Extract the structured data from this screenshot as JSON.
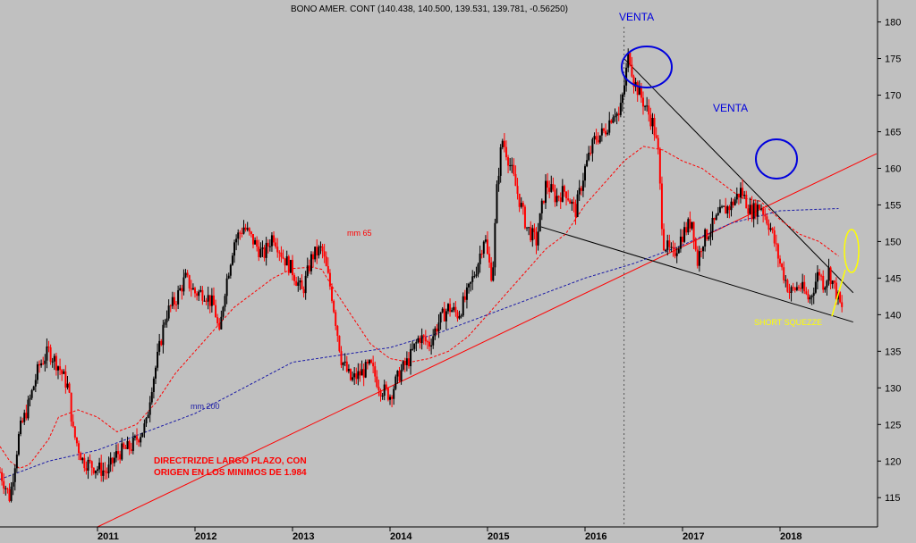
{
  "chart_data": {
    "type": "candlestick",
    "title": "BONO AMER. CONT (140.438, 140.500, 139.531, 139.781, -0.56250)",
    "y_ticks": [
      115,
      120,
      125,
      130,
      135,
      140,
      145,
      150,
      155,
      160,
      165,
      170,
      175,
      180
    ],
    "x_ticks": [
      "2011",
      "2012",
      "2013",
      "2014",
      "2015",
      "2016",
      "2017",
      "2018"
    ],
    "ylim": [
      111,
      183
    ],
    "xlim": [
      2010.0,
      2019.0
    ],
    "grid": false,
    "price_path": [
      [
        2010.0,
        118.5
      ],
      [
        2010.1,
        115
      ],
      [
        2010.2,
        124
      ],
      [
        2010.3,
        128
      ],
      [
        2010.4,
        133
      ],
      [
        2010.5,
        135
      ],
      [
        2010.6,
        133
      ],
      [
        2010.7,
        130
      ],
      [
        2010.75,
        124
      ],
      [
        2010.85,
        120
      ],
      [
        2011.0,
        119
      ],
      [
        2011.1,
        118.5
      ],
      [
        2011.2,
        121
      ],
      [
        2011.35,
        122
      ],
      [
        2011.5,
        125
      ],
      [
        2011.55,
        130
      ],
      [
        2011.6,
        133
      ],
      [
        2011.7,
        140
      ],
      [
        2011.8,
        142
      ],
      [
        2011.9,
        145
      ],
      [
        2012.0,
        143
      ],
      [
        2012.1,
        143
      ],
      [
        2012.2,
        141
      ],
      [
        2012.25,
        137
      ],
      [
        2012.3,
        143
      ],
      [
        2012.4,
        150
      ],
      [
        2012.5,
        152
      ],
      [
        2012.6,
        150
      ],
      [
        2012.7,
        148
      ],
      [
        2012.8,
        151
      ],
      [
        2012.9,
        148
      ],
      [
        2013.0,
        146
      ],
      [
        2013.1,
        143
      ],
      [
        2013.2,
        148
      ],
      [
        2013.3,
        149
      ],
      [
        2013.4,
        143
      ],
      [
        2013.5,
        134
      ],
      [
        2013.6,
        131
      ],
      [
        2013.7,
        132
      ],
      [
        2013.8,
        133
      ],
      [
        2013.9,
        130
      ],
      [
        2014.0,
        129
      ],
      [
        2014.1,
        132
      ],
      [
        2014.2,
        134
      ],
      [
        2014.3,
        137
      ],
      [
        2014.4,
        136
      ],
      [
        2014.5,
        139
      ],
      [
        2014.6,
        141
      ],
      [
        2014.7,
        140
      ],
      [
        2014.8,
        143
      ],
      [
        2014.9,
        147
      ],
      [
        2014.97,
        151
      ],
      [
        2015.0,
        148
      ],
      [
        2015.05,
        145
      ],
      [
        2015.1,
        158
      ],
      [
        2015.15,
        164
      ],
      [
        2015.2,
        162
      ],
      [
        2015.3,
        157
      ],
      [
        2015.4,
        152
      ],
      [
        2015.5,
        150
      ],
      [
        2015.6,
        158
      ],
      [
        2015.7,
        156
      ],
      [
        2015.8,
        157
      ],
      [
        2015.9,
        154
      ],
      [
        2016.0,
        160
      ],
      [
        2016.1,
        164
      ],
      [
        2016.2,
        165
      ],
      [
        2016.3,
        168
      ],
      [
        2016.35,
        167
      ],
      [
        2016.4,
        171
      ],
      [
        2016.45,
        176
      ],
      [
        2016.5,
        172
      ],
      [
        2016.6,
        169
      ],
      [
        2016.7,
        166
      ],
      [
        2016.75,
        162
      ],
      [
        2016.8,
        150
      ],
      [
        2016.9,
        148
      ],
      [
        2017.0,
        151
      ],
      [
        2017.1,
        153
      ],
      [
        2017.15,
        147
      ],
      [
        2017.2,
        150
      ],
      [
        2017.3,
        152
      ],
      [
        2017.4,
        154
      ],
      [
        2017.5,
        155
      ],
      [
        2017.6,
        157
      ],
      [
        2017.7,
        154
      ],
      [
        2017.8,
        155
      ],
      [
        2017.9,
        152
      ],
      [
        2018.0,
        147
      ],
      [
        2018.1,
        143
      ],
      [
        2018.2,
        144
      ],
      [
        2018.3,
        142
      ],
      [
        2018.4,
        146
      ],
      [
        2018.45,
        144
      ],
      [
        2018.5,
        146
      ],
      [
        2018.6,
        142
      ],
      [
        2018.65,
        140
      ]
    ],
    "series": [
      {
        "name": "mm 65",
        "color": "#ff0000",
        "dash": true,
        "points": [
          [
            2010.0,
            122
          ],
          [
            2010.1,
            120
          ],
          [
            2010.2,
            119
          ],
          [
            2010.3,
            119.5
          ],
          [
            2010.5,
            123
          ],
          [
            2010.6,
            126
          ],
          [
            2010.8,
            127
          ],
          [
            2011.0,
            126
          ],
          [
            2011.2,
            124
          ],
          [
            2011.4,
            125
          ],
          [
            2011.6,
            128
          ],
          [
            2011.8,
            132
          ],
          [
            2012.0,
            135
          ],
          [
            2012.2,
            138
          ],
          [
            2012.4,
            141
          ],
          [
            2012.6,
            143
          ],
          [
            2012.8,
            145
          ],
          [
            2013.0,
            146.3
          ],
          [
            2013.2,
            146.5
          ],
          [
            2013.3,
            146.2
          ],
          [
            2013.4,
            144
          ],
          [
            2013.6,
            140
          ],
          [
            2013.8,
            136
          ],
          [
            2014.0,
            134
          ],
          [
            2014.2,
            133.5
          ],
          [
            2014.4,
            134
          ],
          [
            2014.6,
            135
          ],
          [
            2014.8,
            137
          ],
          [
            2015.0,
            140
          ],
          [
            2015.2,
            143
          ],
          [
            2015.4,
            146
          ],
          [
            2015.6,
            149
          ],
          [
            2015.8,
            151
          ],
          [
            2016.0,
            155
          ],
          [
            2016.2,
            158
          ],
          [
            2016.4,
            161
          ],
          [
            2016.6,
            163
          ],
          [
            2016.8,
            162.5
          ],
          [
            2017.0,
            161
          ],
          [
            2017.2,
            160
          ],
          [
            2017.4,
            158
          ],
          [
            2017.6,
            156
          ],
          [
            2017.8,
            155.5
          ],
          [
            2018.0,
            153
          ],
          [
            2018.2,
            151
          ],
          [
            2018.4,
            150
          ],
          [
            2018.6,
            148
          ]
        ]
      },
      {
        "name": "mm 200",
        "color": "#1a1aa6",
        "dash": true,
        "points": [
          [
            2010.0,
            117.5
          ],
          [
            2010.5,
            120
          ],
          [
            2011.0,
            121.5
          ],
          [
            2011.5,
            124
          ],
          [
            2012.0,
            126.5
          ],
          [
            2012.5,
            130
          ],
          [
            2013.0,
            133.5
          ],
          [
            2013.5,
            134.5
          ],
          [
            2014.0,
            135.5
          ],
          [
            2014.5,
            137.5
          ],
          [
            2015.0,
            140
          ],
          [
            2015.5,
            142.5
          ],
          [
            2016.0,
            145
          ],
          [
            2016.5,
            147
          ],
          [
            2017.0,
            149.5
          ],
          [
            2017.5,
            152.5
          ],
          [
            2018.0,
            154.2
          ],
          [
            2018.6,
            154.5
          ]
        ]
      }
    ],
    "trendlines": [
      {
        "label": "DIRECTRIZDE LARGO PLAZO, CON ORIGEN EN LOS MINIMOS DE 1.984",
        "color": "#ff0000",
        "from": [
          2011.0,
          111
        ],
        "to": [
          2018.99,
          162
        ]
      },
      {
        "label": "VENTA",
        "color": "#000000",
        "from": [
          2016.4,
          175
        ],
        "to": [
          2018.75,
          143
        ]
      },
      {
        "label": "",
        "color": "#000000",
        "from": [
          2015.55,
          152
        ],
        "to": [
          2018.75,
          139
        ]
      }
    ],
    "vline_x": 2016.4,
    "annotations": {
      "venta_top": "VENTA",
      "venta_line": "VENTA",
      "mm65": "mm 65",
      "mm200": "mm 200",
      "directriz_line1": "DIRECTRIZDE LARGO PLAZO, CON",
      "directriz_line2": "ORIGEN EN LOS MINIMOS DE 1.984",
      "short_squeeze": "SHORT SQUEZZE"
    },
    "colors": {
      "background": "#c0c0c0",
      "up_candle": "#000000",
      "down_candle": "#ff0000",
      "circle": "#0000dd",
      "squeeze": "#ffff00"
    }
  }
}
